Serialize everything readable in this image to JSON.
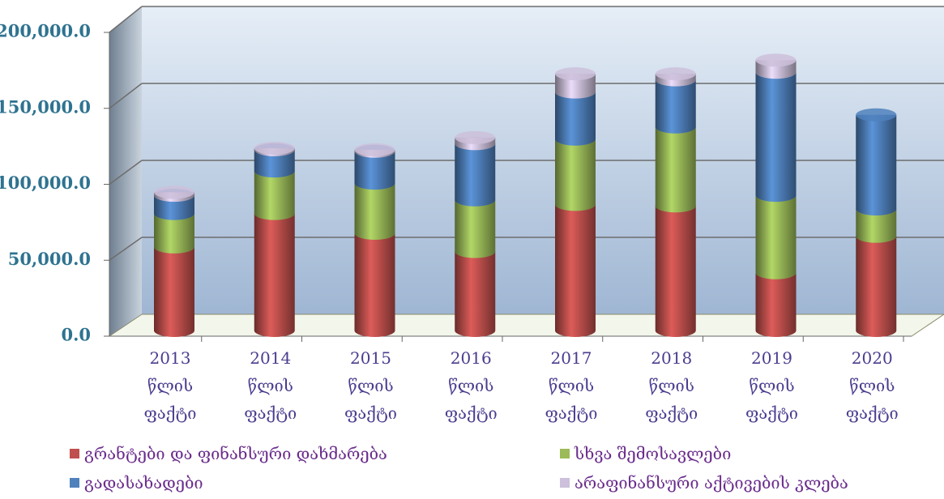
{
  "chart_data": {
    "type": "bar3d_stacked",
    "categories": [
      "2013 წლის ფაქტი",
      "2014 წლის ფაქტი",
      "2015 წლის ფაქტი",
      "2016 წლის ფაქტი",
      "2017 წლის ფაქტი",
      "2018 წლის ფაქტი",
      "2019 წლის ფაქტი",
      "2020 წლის ფაქტი"
    ],
    "series": [
      {
        "name": "გრანტები და ფინანსური დახმარება",
        "color": "#c0504d",
        "values": [
          55000,
          77000,
          64000,
          52000,
          83000,
          82000,
          38000,
          62000
        ]
      },
      {
        "name": "სხვა შემოსავლები",
        "color": "#9bbb59",
        "values": [
          22000,
          28000,
          33000,
          34000,
          43000,
          52000,
          51000,
          18000
        ]
      },
      {
        "name": "გადასახადები",
        "color": "#4f81bd",
        "values": [
          12000,
          14000,
          21000,
          37000,
          31000,
          31000,
          81000,
          62000
        ]
      },
      {
        "name": "არაფინანსური აქტივების კლება",
        "color": "#ccc0da",
        "values": [
          2000,
          1000,
          1000,
          4000,
          12000,
          4000,
          8000,
          0
        ]
      }
    ],
    "ylim": [
      0,
      200000
    ],
    "yticks": [
      {
        "value": 0,
        "label": "0.0"
      },
      {
        "value": 50000,
        "label": "50,000.0"
      },
      {
        "value": 100000,
        "label": "100,000.0"
      },
      {
        "value": 150000,
        "label": "150,000.0"
      },
      {
        "value": 200000,
        "label": "200,000.0"
      }
    ],
    "grid": true,
    "legend": "bottom"
  }
}
